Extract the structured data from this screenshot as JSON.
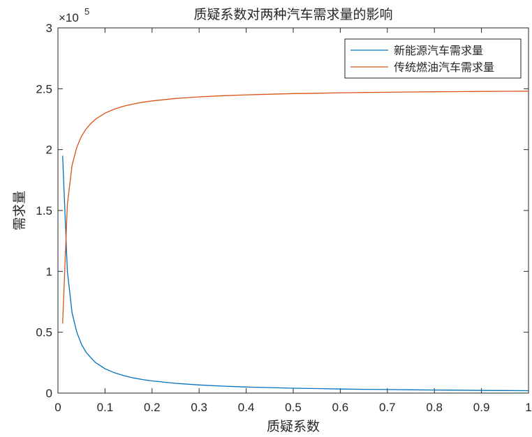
{
  "chart_data": {
    "type": "line",
    "title": "质疑系数对两种汽车需求量的影响",
    "xlabel": "质疑系数",
    "ylabel": "需求量",
    "xlim": [
      0,
      1
    ],
    "ylim": [
      0,
      300000
    ],
    "x_ticks": [
      "0",
      "0.1",
      "0.2",
      "0.3",
      "0.4",
      "0.5",
      "0.6",
      "0.7",
      "0.8",
      "0.9",
      "1"
    ],
    "y_ticks": [
      "0",
      "0.5",
      "1",
      "1.5",
      "2",
      "2.5",
      "3"
    ],
    "y_exponent_label": "×10",
    "y_exponent_power": "5",
    "grid": false,
    "legend_position": "top-right",
    "x": [
      0.01,
      0.02,
      0.03,
      0.04,
      0.05,
      0.06,
      0.07,
      0.08,
      0.09,
      0.1,
      0.12,
      0.14,
      0.16,
      0.18,
      0.2,
      0.25,
      0.3,
      0.35,
      0.4,
      0.45,
      0.5,
      0.55,
      0.6,
      0.65,
      0.7,
      0.75,
      0.8,
      0.85,
      0.9,
      0.95,
      1.0
    ],
    "series": [
      {
        "name": "新能源汽车需求量",
        "color": "#0072BD",
        "values": [
          195000,
          100000,
          66000,
          50000,
          40000,
          33500,
          29000,
          25000,
          22500,
          20000,
          16700,
          14300,
          12500,
          11100,
          10000,
          8000,
          6700,
          5700,
          5000,
          4500,
          4000,
          3700,
          3300,
          3100,
          2900,
          2700,
          2500,
          2400,
          2200,
          2100,
          2000
        ]
      },
      {
        "name": "传统燃油汽车需求量",
        "color": "#D95319",
        "values": [
          57000,
          155000,
          187000,
          202000,
          211000,
          217000,
          221500,
          225000,
          227500,
          230000,
          233300,
          235700,
          237500,
          238900,
          240000,
          242000,
          243300,
          244300,
          245000,
          245500,
          246000,
          246300,
          246700,
          246900,
          247100,
          247300,
          247500,
          247600,
          247800,
          247900,
          248000
        ]
      }
    ]
  }
}
